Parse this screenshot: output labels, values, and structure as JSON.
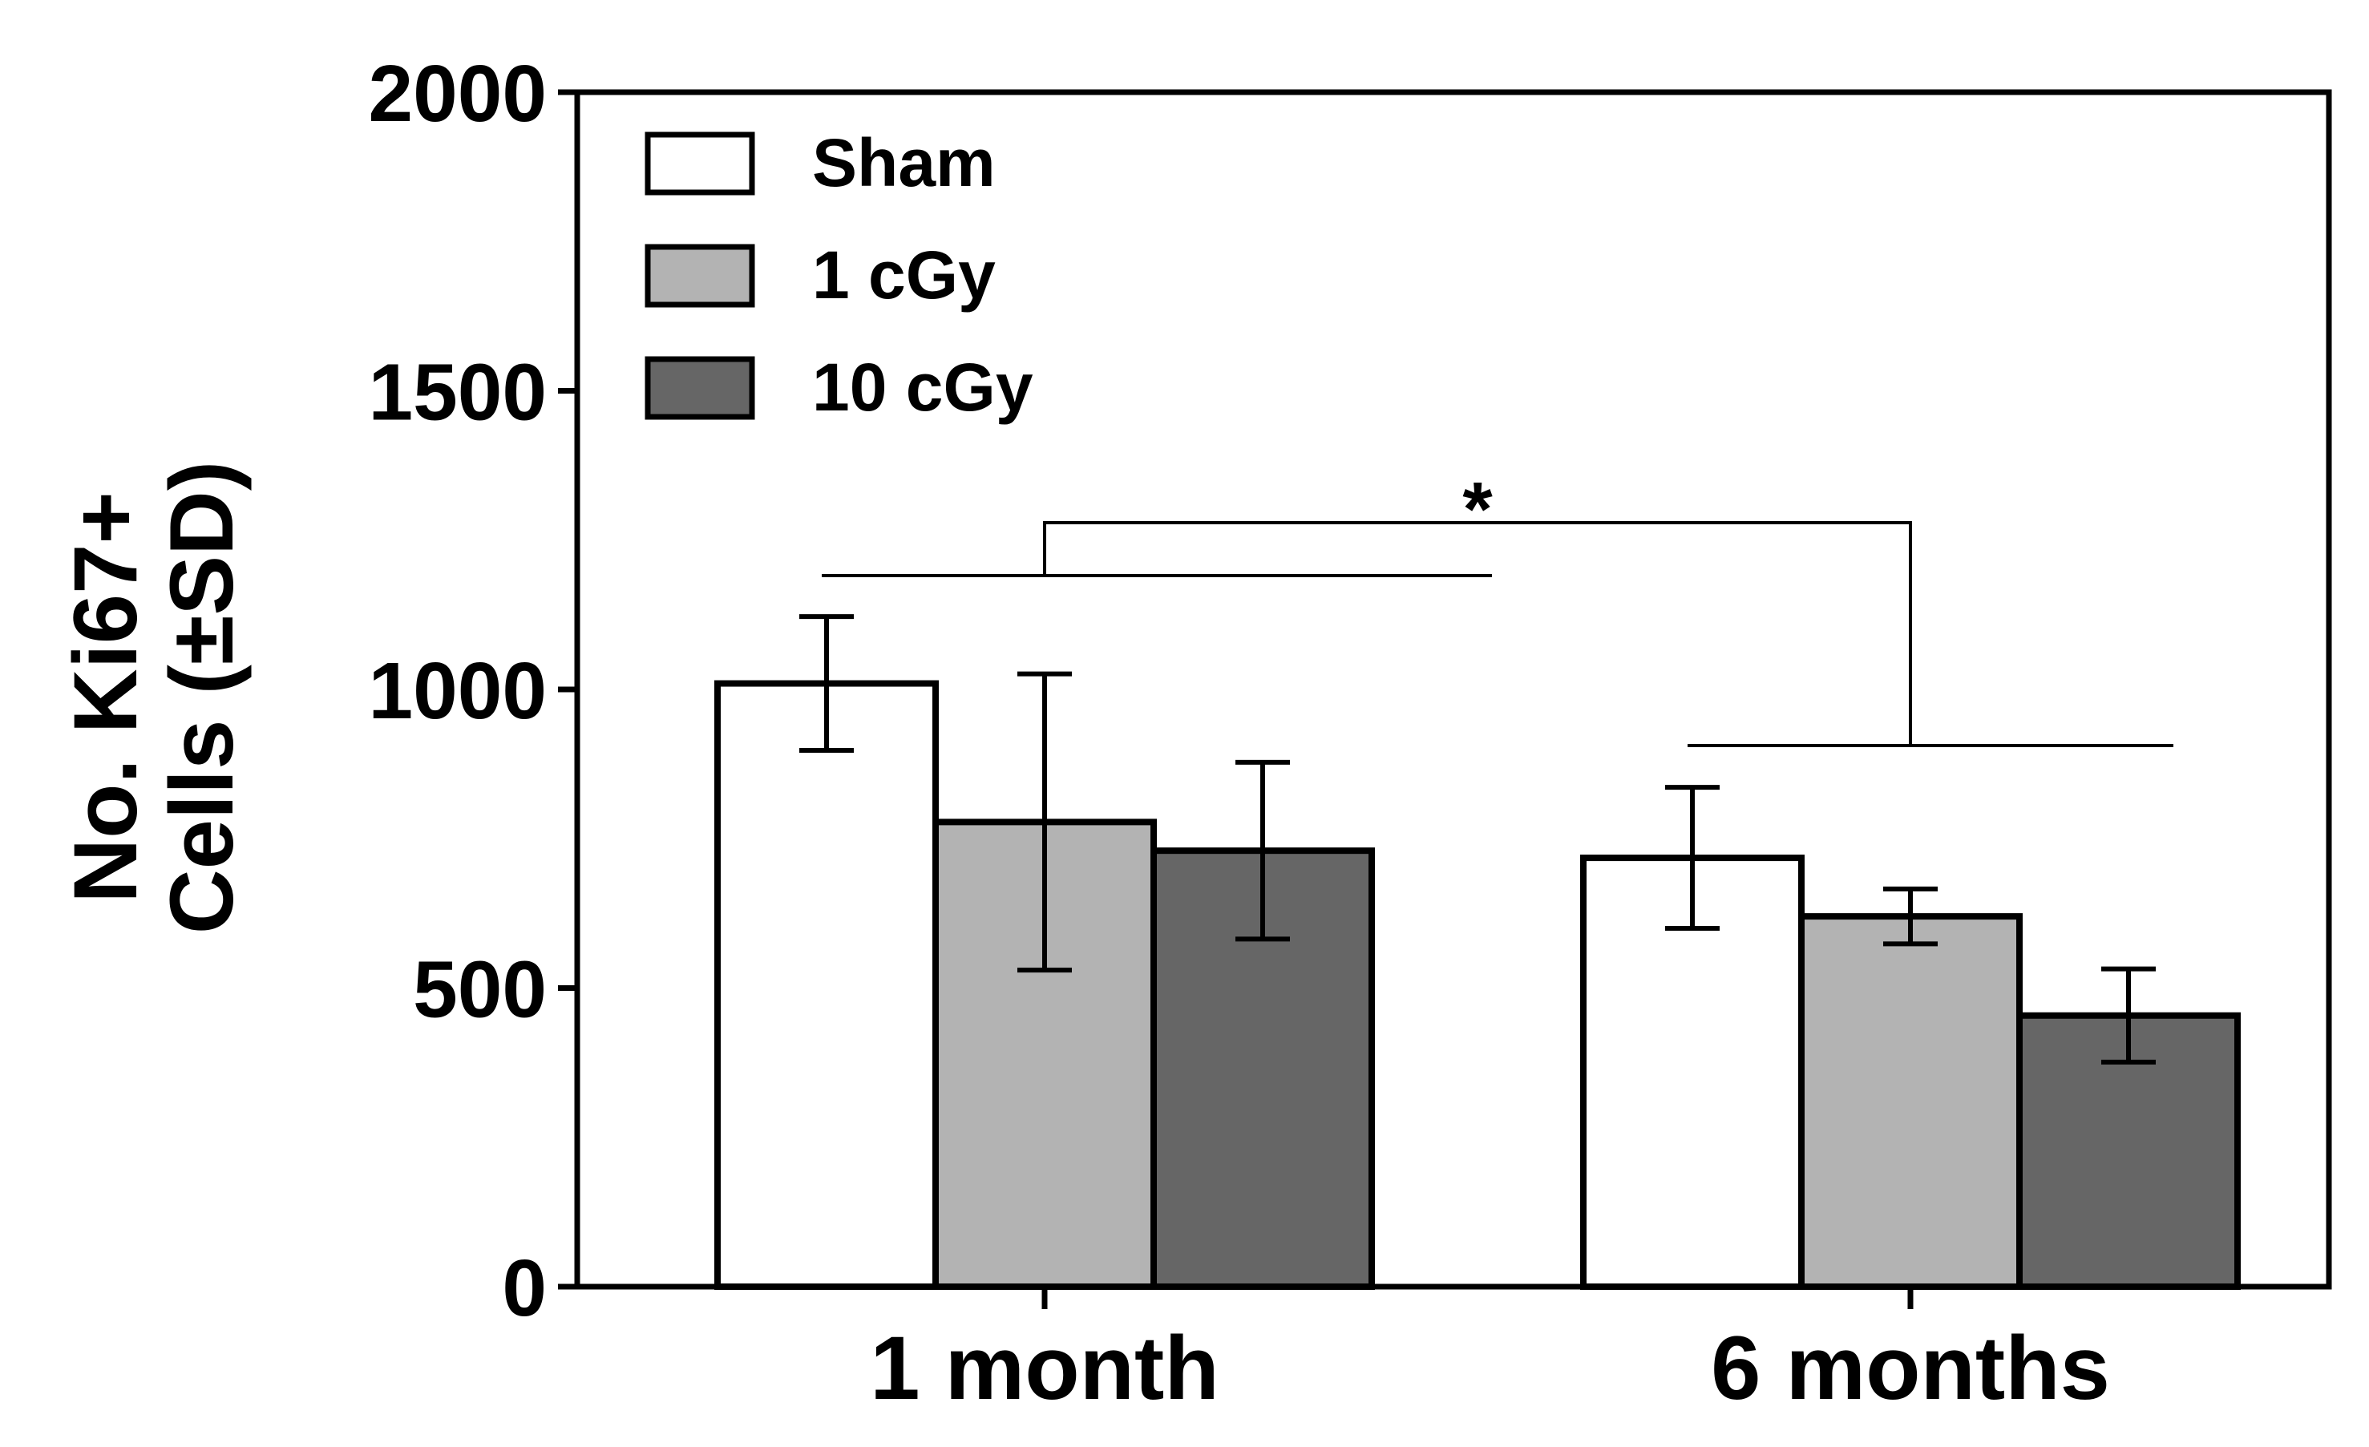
{
  "chart_data": {
    "type": "bar",
    "title": "",
    "xlabel": "",
    "ylabel_lines": [
      "No. Ki67+",
      "Cells (±SD)"
    ],
    "categories": [
      "1 month",
      "6 months"
    ],
    "ylim": [
      0,
      2000
    ],
    "yticks": [
      0,
      500,
      1000,
      1500,
      2000
    ],
    "legend_position": "top-left",
    "series": [
      {
        "name": "Sham",
        "color": "#ffffff",
        "values": [
          1010,
          718
        ],
        "sd": [
          112,
          118
        ]
      },
      {
        "name": "1 cGy",
        "color": "#b3b3b3",
        "values": [
          778,
          620
        ],
        "sd": [
          248,
          46
        ]
      },
      {
        "name": "10 cGy",
        "color": "#666666",
        "values": [
          730,
          454
        ],
        "sd": [
          148,
          78
        ]
      }
    ],
    "annotations": [
      {
        "type": "significance",
        "label": "*",
        "between": [
          "1 month",
          "6 months"
        ]
      }
    ]
  }
}
